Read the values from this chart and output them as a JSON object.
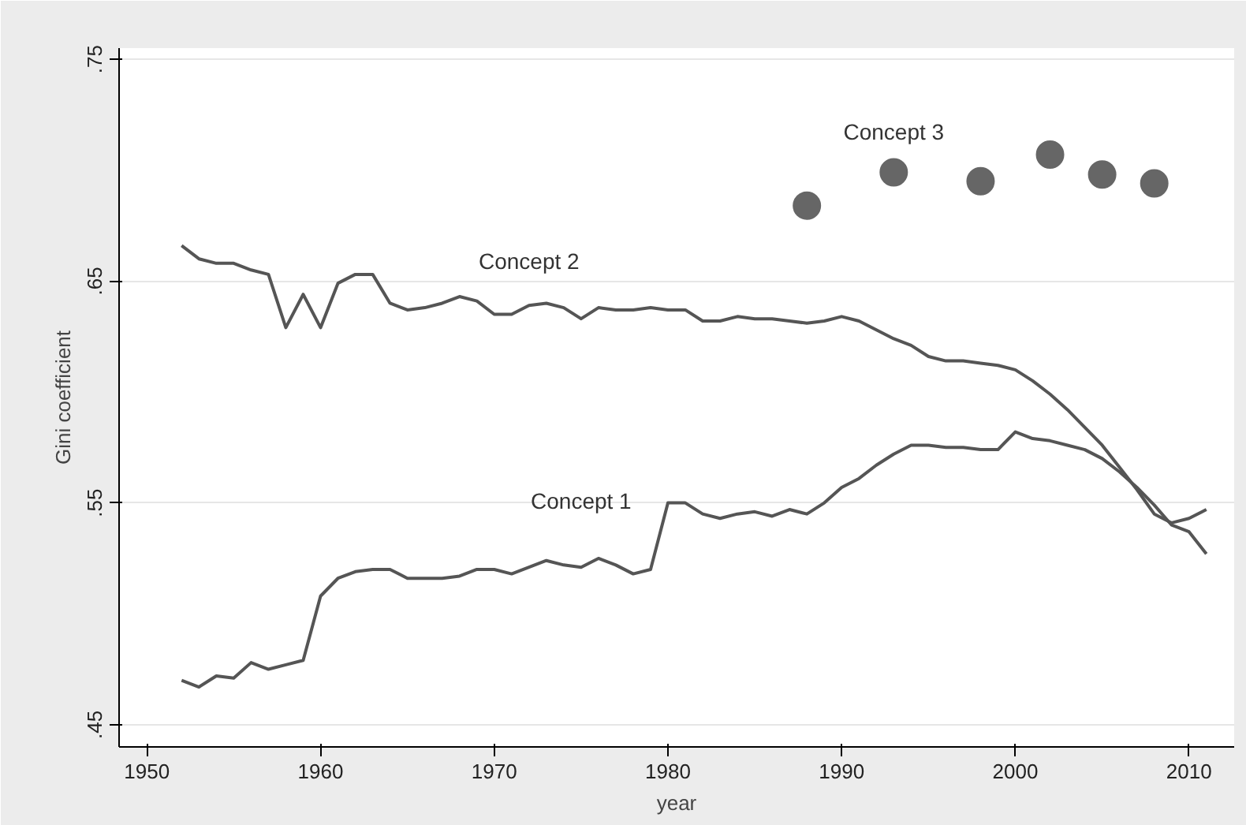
{
  "chart_data": {
    "type": "line",
    "xlabel": "year",
    "ylabel": "Gini coefficient",
    "xlim": [
      1948.4,
      2012.6
    ],
    "ylim": [
      0.44,
      0.755
    ],
    "xticks": [
      1950,
      1960,
      1970,
      1980,
      1990,
      2000,
      2010
    ],
    "yticks": [
      {
        "value": 0.45,
        "label": ".45"
      },
      {
        "value": 0.55,
        "label": ".55"
      },
      {
        "value": 0.65,
        "label": ".65"
      },
      {
        "value": 0.75,
        "label": ".75"
      }
    ],
    "grid": "y",
    "series": [
      {
        "name": "Concept 1",
        "color": "#555555",
        "marker": "none",
        "x": [
          1952,
          1953,
          1954,
          1955,
          1956,
          1957,
          1958,
          1959,
          1960,
          1961,
          1962,
          1963,
          1964,
          1965,
          1966,
          1967,
          1968,
          1969,
          1970,
          1971,
          1972,
          1973,
          1974,
          1975,
          1976,
          1977,
          1978,
          1979,
          1980,
          1981,
          1982,
          1983,
          1984,
          1985,
          1986,
          1987,
          1988,
          1989,
          1990,
          1991,
          1992,
          1993,
          1994,
          1995,
          1996,
          1997,
          1998,
          1999,
          2000,
          2001,
          2002,
          2003,
          2004,
          2005,
          2006,
          2007,
          2008,
          2009,
          2010,
          2011
        ],
        "values": [
          0.47,
          0.467,
          0.472,
          0.471,
          0.478,
          0.475,
          0.477,
          0.479,
          0.508,
          0.516,
          0.519,
          0.52,
          0.52,
          0.516,
          0.516,
          0.516,
          0.517,
          0.52,
          0.52,
          0.518,
          0.521,
          0.524,
          0.522,
          0.521,
          0.525,
          0.522,
          0.518,
          0.52,
          0.55,
          0.55,
          0.545,
          0.543,
          0.545,
          0.546,
          0.544,
          0.547,
          0.545,
          0.55,
          0.557,
          0.561,
          0.567,
          0.572,
          0.576,
          0.576,
          0.575,
          0.575,
          0.574,
          0.574,
          0.582,
          0.579,
          0.578,
          0.576,
          0.574,
          0.57,
          0.564,
          0.557,
          0.549,
          0.54,
          0.537,
          0.527
        ]
      },
      {
        "name": "Concept 2",
        "color": "#555555",
        "marker": "none",
        "x": [
          1952,
          1953,
          1954,
          1955,
          1956,
          1957,
          1958,
          1959,
          1960,
          1961,
          1962,
          1963,
          1964,
          1965,
          1966,
          1967,
          1968,
          1969,
          1970,
          1971,
          1972,
          1973,
          1974,
          1975,
          1976,
          1977,
          1978,
          1979,
          1980,
          1981,
          1982,
          1983,
          1984,
          1985,
          1986,
          1987,
          1988,
          1989,
          1990,
          1991,
          1992,
          1993,
          1994,
          1995,
          1996,
          1997,
          1998,
          1999,
          2000,
          2001,
          2002,
          2003,
          2004,
          2005,
          2006,
          2007,
          2008,
          2009,
          2010,
          2011
        ],
        "values": [
          0.666,
          0.66,
          0.658,
          0.658,
          0.655,
          0.653,
          0.629,
          0.644,
          0.629,
          0.649,
          0.653,
          0.653,
          0.64,
          0.637,
          0.638,
          0.64,
          0.643,
          0.641,
          0.635,
          0.635,
          0.639,
          0.64,
          0.638,
          0.633,
          0.638,
          0.637,
          0.637,
          0.638,
          0.637,
          0.637,
          0.632,
          0.632,
          0.634,
          0.633,
          0.633,
          0.632,
          0.631,
          0.632,
          0.634,
          0.632,
          0.628,
          0.624,
          0.621,
          0.616,
          0.614,
          0.614,
          0.613,
          0.612,
          0.61,
          0.605,
          0.599,
          0.592,
          0.584,
          0.576,
          0.566,
          0.556,
          0.545,
          0.541,
          0.543,
          0.547
        ]
      },
      {
        "name": "Concept 3",
        "type": "scatter",
        "color": "#666666",
        "marker": "circle",
        "x": [
          1988,
          1993,
          1998,
          2002,
          2005,
          2008
        ],
        "values": [
          0.684,
          0.699,
          0.695,
          0.707,
          0.698,
          0.694
        ]
      }
    ]
  }
}
